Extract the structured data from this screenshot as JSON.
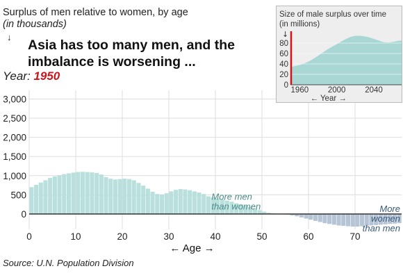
{
  "header": {
    "title": "Surplus of men relative to women, by age",
    "subtitle": "(in thousands)",
    "arrow": "↓",
    "headline": "Asia has too many men, and the imbalance is worsening ...",
    "year_label": "Year:",
    "year_value": "1950"
  },
  "source": "Source: U.N. Population Division",
  "colors": {
    "positive": "#b9e0dd",
    "negative": "#b6c5d6",
    "grid": "#dddddd",
    "axis_text": "#222222",
    "annotation": "#4a8c8a",
    "annotation_negative": "#3a5a7a",
    "marker": "#d0121b",
    "inset_area": "#a9d8d4"
  },
  "chart_data": [
    {
      "type": "bar",
      "title": "Surplus of men relative to women, by age",
      "subtitle": "(in thousands)",
      "xlabel": "← Age →",
      "ylabel": "",
      "x_ticks": [
        0,
        10,
        20,
        30,
        40,
        50,
        60,
        70
      ],
      "y_ticks": [
        0,
        500,
        1000,
        1500,
        2000,
        2500,
        3000
      ],
      "y_tick_labels": [
        "0",
        "500",
        "1,000",
        "1,500",
        "2,000",
        "2,500",
        "3,000"
      ],
      "xlim": [
        0,
        80
      ],
      "ylim": [
        -400,
        3300
      ],
      "annotations": [
        {
          "text": [
            "More men",
            "than women"
          ],
          "x": 42,
          "y": 370
        },
        {
          "text": [
            "More",
            "women",
            "than men"
          ],
          "x": 80,
          "y": -70
        }
      ],
      "x": [
        0,
        1,
        2,
        3,
        4,
        5,
        6,
        7,
        8,
        9,
        10,
        11,
        12,
        13,
        14,
        15,
        16,
        17,
        18,
        19,
        20,
        21,
        22,
        23,
        24,
        25,
        26,
        27,
        28,
        29,
        30,
        31,
        32,
        33,
        34,
        35,
        36,
        37,
        38,
        39,
        40,
        41,
        42,
        43,
        44,
        45,
        46,
        47,
        48,
        49,
        50,
        51,
        52,
        53,
        54,
        55,
        56,
        57,
        58,
        59,
        60,
        61,
        62,
        63,
        64,
        65,
        66,
        67,
        68,
        69,
        70,
        71,
        72,
        73,
        74,
        75,
        76,
        77,
        78,
        79
      ],
      "values": [
        700,
        760,
        820,
        880,
        940,
        980,
        1010,
        1040,
        1060,
        1080,
        1095,
        1100,
        1095,
        1085,
        1070,
        1030,
        960,
        920,
        900,
        910,
        920,
        910,
        880,
        810,
        740,
        660,
        580,
        520,
        510,
        540,
        590,
        630,
        650,
        640,
        620,
        590,
        560,
        520,
        460,
        430,
        400,
        380,
        350,
        320,
        280,
        250,
        220,
        180,
        140,
        100,
        60,
        30,
        15,
        5,
        0,
        -15,
        -35,
        -60,
        -90,
        -120,
        -150,
        -180,
        -210,
        -240,
        -260,
        -280,
        -300,
        -310,
        -320,
        -330,
        -330,
        -320,
        -310,
        -300,
        -290,
        -280,
        -270,
        -260,
        -250,
        -240
      ]
    },
    {
      "type": "area",
      "title": "Size of male surplus over time",
      "subtitle": "(in millions)",
      "xlabel": "← Year →",
      "x_ticks": [
        1960,
        2000,
        2040
      ],
      "y_ticks": [
        0,
        20,
        40,
        60,
        80
      ],
      "xlim": [
        1950,
        2070
      ],
      "ylim": [
        0,
        100
      ],
      "marker_year": 1950,
      "x": [
        1950,
        1955,
        1960,
        1965,
        1970,
        1975,
        1980,
        1985,
        1990,
        1995,
        2000,
        2005,
        2010,
        2015,
        2020,
        2025,
        2030,
        2035,
        2040,
        2045,
        2050,
        2055,
        2060,
        2065,
        2070
      ],
      "values": [
        34,
        36,
        38,
        41,
        45,
        50,
        56,
        62,
        68,
        73,
        78,
        83,
        88,
        92,
        94,
        94,
        93,
        91,
        88,
        85,
        82,
        81,
        82,
        84,
        85
      ]
    }
  ]
}
